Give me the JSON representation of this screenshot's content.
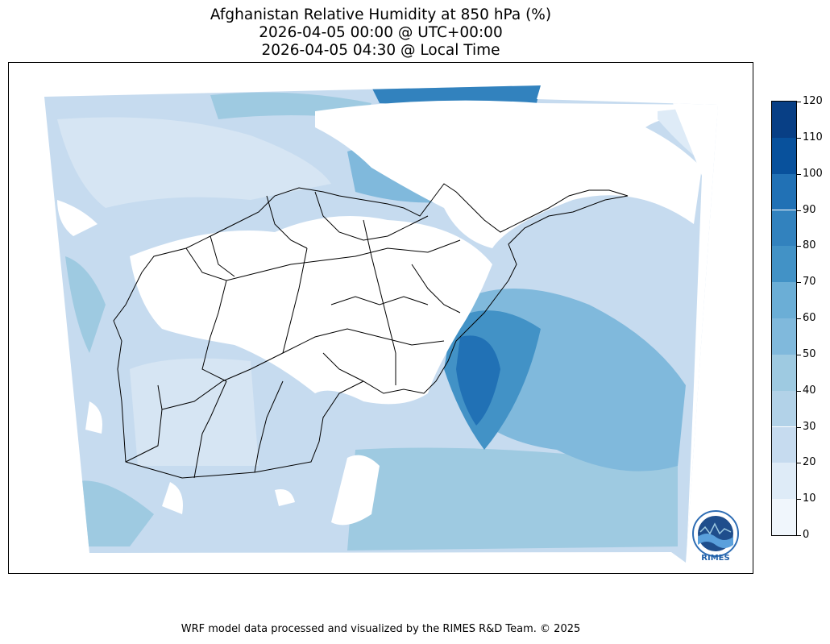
{
  "title_lines": [
    "Afghanistan Relative Humidity at 850 hPa (%)",
    "2026-04-05 00:00 @ UTC+00:00",
    "2026-04-05 04:30 @ Local Time"
  ],
  "colorbar": {
    "ticks": [
      "0",
      "10",
      "20",
      "30",
      "40",
      "50",
      "60",
      "70",
      "80",
      "90",
      "100",
      "110",
      "120"
    ],
    "colors": [
      "#f0f6fc",
      "#deebf7",
      "#c6dbef",
      "#b2d2e8",
      "#9ecae1",
      "#80b9dc",
      "#6baed6",
      "#4292c6",
      "#3282be",
      "#2171b5",
      "#08519c",
      "#083f85"
    ]
  },
  "logo": {
    "label": "RIMES"
  },
  "footer": "WRF model data processed and visualized by the RIMES R&D Team. © 2025"
}
